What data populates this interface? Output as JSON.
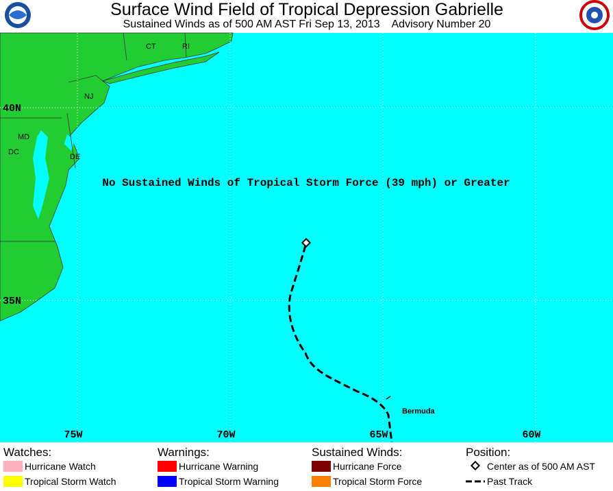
{
  "header": {
    "title": "Surface Wind Field of Tropical Depression Gabrielle",
    "subtitle": "Sustained Winds as of 500 AM AST Fri Sep 13, 2013    Advisory Number 20"
  },
  "map": {
    "lat_labels": [
      "40N",
      "35N"
    ],
    "lon_labels": [
      "75W",
      "70W",
      "65W",
      "60W"
    ],
    "place_labels": [
      "CT",
      "RI",
      "NJ",
      "MD",
      "DC",
      "DE",
      "Bermuda"
    ],
    "annotation": "No Sustained Winds of Tropical Storm Force (39 mph) or Greater"
  },
  "legend": {
    "watches": {
      "heading": "Watches:",
      "items": [
        "Hurricane Watch",
        "Tropical Storm Watch"
      ]
    },
    "warnings": {
      "heading": "Warnings:",
      "items": [
        "Hurricane Warning",
        "Tropical Storm Warning"
      ]
    },
    "winds": {
      "heading": "Sustained Winds:",
      "items": [
        "Hurricane Force",
        "Tropical Storm Force"
      ]
    },
    "position": {
      "heading": "Position:",
      "items": [
        "Center as of 500 AM AST",
        "Past Track"
      ]
    }
  }
}
